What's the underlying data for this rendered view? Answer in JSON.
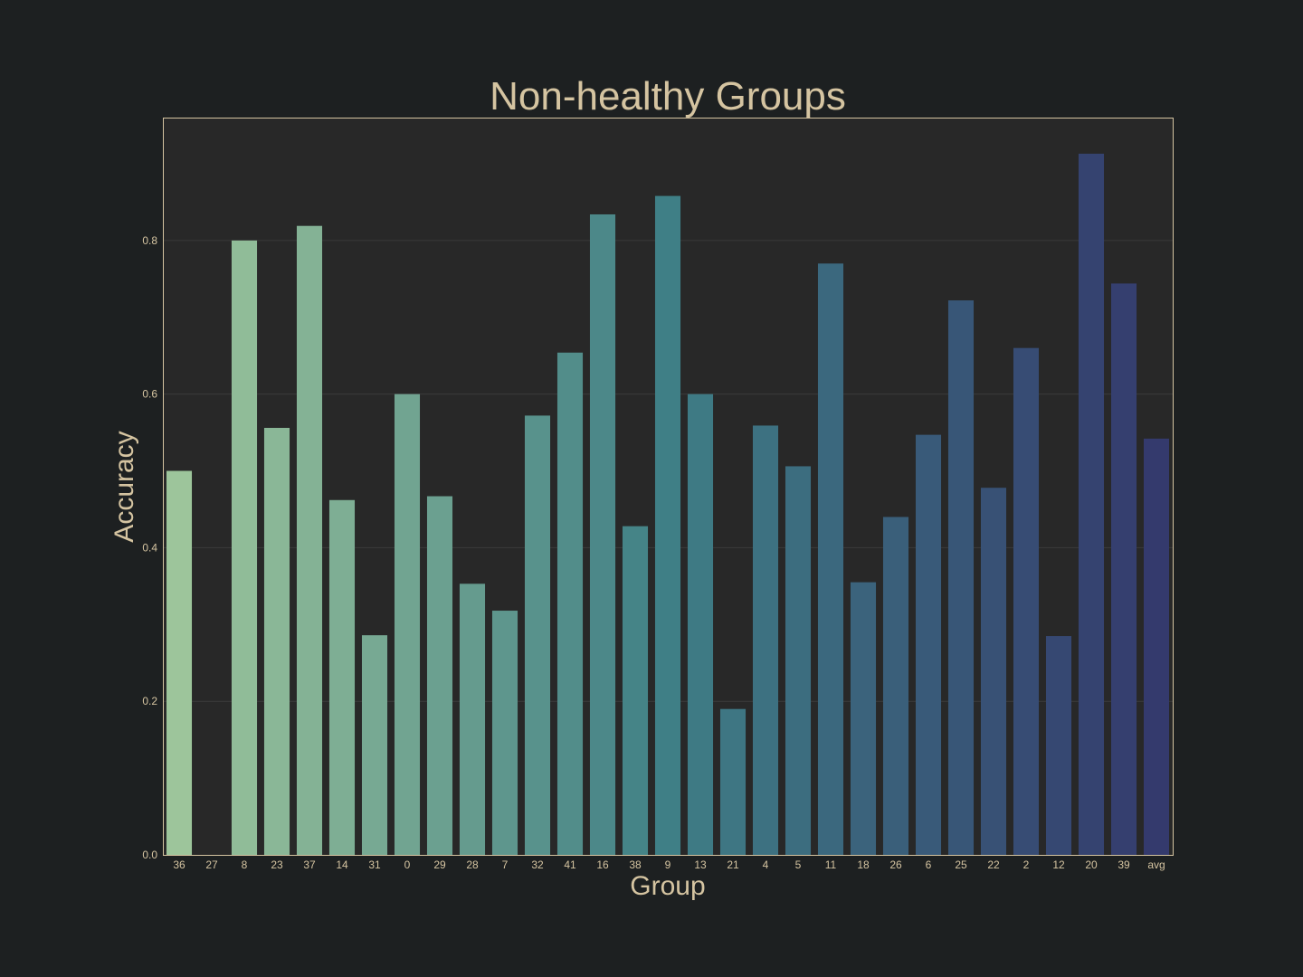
{
  "chart_data": {
    "type": "bar",
    "title": "Non-healthy Groups",
    "xlabel": "Group",
    "ylabel": "Accuracy",
    "categories": [
      "36",
      "27",
      "8",
      "23",
      "37",
      "14",
      "31",
      "0",
      "29",
      "28",
      "7",
      "32",
      "41",
      "16",
      "38",
      "9",
      "13",
      "21",
      "4",
      "5",
      "11",
      "18",
      "26",
      "6",
      "25",
      "22",
      "2",
      "12",
      "20",
      "39",
      "avg"
    ],
    "values": [
      0.5,
      0.0,
      0.8,
      0.556,
      0.819,
      0.462,
      0.286,
      0.6,
      0.467,
      0.353,
      0.318,
      0.572,
      0.654,
      0.834,
      0.428,
      0.858,
      0.6,
      0.19,
      0.559,
      0.506,
      0.77,
      0.355,
      0.44,
      0.547,
      0.722,
      0.478,
      0.66,
      0.285,
      0.913,
      0.744,
      0.542
    ],
    "ylim": [
      0,
      0.96
    ],
    "yticks": [
      "0.0",
      "0.2",
      "0.4",
      "0.6",
      "0.8"
    ],
    "grid": true,
    "legend": "none",
    "colors": {
      "page_bg": "#1d2021",
      "plot_bg": "#282828",
      "frame": "#d5c4a1",
      "text": "#d5c4a1",
      "grid": "#3a3a3a",
      "bar_start": "#9dc59b",
      "bar_mid": "#3f7f86",
      "bar_end": "#343a6d"
    }
  }
}
